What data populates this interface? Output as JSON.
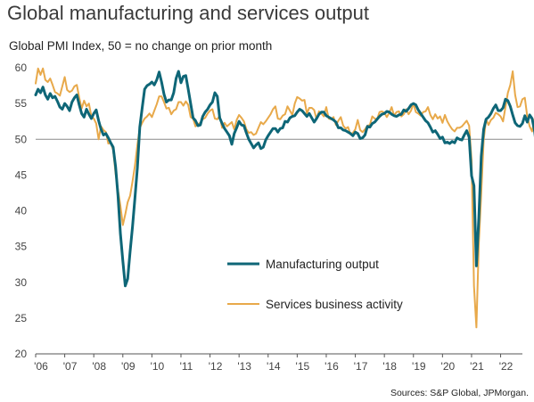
{
  "title": "Global manufacturing and services output",
  "subtitle": "Global PMI Index, 50 = no change on prior month",
  "source": "Sources: S&P Global, JPMorgan.",
  "chart_data": {
    "type": "line",
    "x_start": 2006.0,
    "x_step_months": 1,
    "xlim": [
      2006.0,
      2022.75
    ],
    "ylim": [
      20,
      60
    ],
    "yticks": [
      20,
      25,
      30,
      35,
      40,
      45,
      50,
      55,
      60
    ],
    "xtick_labels": [
      "'06",
      "'07",
      "'08",
      "'09",
      "'10",
      "'11",
      "'12",
      "'13",
      "'14",
      "'15",
      "'16",
      "'17",
      "'18",
      "'19",
      "'20",
      "'21",
      "'22"
    ],
    "reference_line": 50,
    "legend_position": "lower-center",
    "series": [
      {
        "name": "Manufacturing output",
        "color": "#0e6677",
        "values": [
          56.2,
          57.0,
          56.5,
          57.3,
          56.2,
          55.6,
          56.4,
          55.8,
          56.0,
          55.3,
          54.5,
          54.2,
          55.0,
          54.6,
          54.0,
          55.2,
          55.8,
          56.2,
          54.8,
          53.6,
          53.1,
          54.2,
          53.5,
          52.9,
          53.6,
          54.1,
          52.6,
          51.4,
          50.6,
          50.8,
          50.2,
          49.5,
          48.9,
          46.2,
          42.1,
          36.8,
          33.0,
          29.5,
          30.5,
          34.3,
          37.8,
          41.8,
          46.0,
          51.7,
          54.4,
          57.0,
          57.5,
          57.7,
          58.0,
          57.6,
          58.3,
          59.4,
          58.0,
          56.3,
          55.2,
          55.5,
          55.5,
          56.5,
          58.5,
          59.5,
          57.9,
          58.8,
          58.9,
          57.0,
          55.0,
          53.0,
          52.6,
          51.9,
          52.0,
          53.2,
          53.8,
          54.2,
          54.8,
          55.2,
          56.5,
          56.0,
          53.0,
          52.2,
          51.5,
          51.0,
          50.5,
          49.3,
          50.8,
          51.6,
          52.5,
          52.0,
          51.9,
          50.9,
          50.0,
          49.4,
          48.8,
          49.2,
          49.5,
          48.7,
          48.9,
          49.9,
          50.5,
          51.0,
          51.5,
          51.5,
          51.0,
          51.5,
          51.6,
          52.5,
          52.4,
          53.0,
          53.2,
          53.3,
          53.8,
          54.2,
          54.0,
          53.6,
          53.2,
          53.6,
          53.0,
          52.4,
          52.9,
          53.5,
          53.8,
          53.8,
          53.3,
          53.1,
          52.9,
          52.7,
          52.4,
          51.6,
          51.6,
          51.3,
          51.2,
          51.0,
          50.8,
          50.5,
          51.0,
          50.8,
          50.1,
          50.2,
          50.6,
          51.8,
          51.7,
          52.2,
          52.4,
          52.8,
          53.2,
          53.5,
          53.6,
          53.9,
          53.8,
          53.5,
          53.3,
          53.2,
          53.4,
          53.5,
          54.1,
          53.9,
          54.3,
          54.8,
          55.0,
          54.8,
          54.1,
          53.6,
          53.1,
          52.6,
          52.3,
          51.7,
          51.0,
          51.2,
          50.7,
          50.1,
          50.3,
          49.5,
          49.6,
          49.4,
          49.7,
          49.5,
          50.2,
          50.0,
          49.9,
          50.6,
          51.2,
          50.3,
          44.9,
          43.5,
          32.3,
          39.0,
          47.6,
          51.4,
          52.8,
          53.1,
          53.6,
          54.3,
          54.8,
          54.0,
          54.0,
          54.4,
          55.6,
          55.4,
          54.6,
          53.4,
          52.3,
          51.9,
          51.8,
          52.2,
          53.3,
          52.4,
          53.4,
          52.9,
          51.2,
          48.5,
          48.9,
          50.8,
          52.0,
          50.7,
          49.8
        ]
      },
      {
        "name": "Services business activity",
        "color": "#e8a94a",
        "values": [
          57.8,
          59.9,
          59.0,
          59.9,
          58.3,
          58.0,
          58.5,
          57.6,
          56.6,
          56.4,
          56.1,
          57.4,
          58.7,
          56.9,
          56.6,
          56.8,
          57.4,
          57.6,
          55.8,
          54.3,
          55.4,
          54.6,
          55.0,
          53.2,
          52.9,
          52.2,
          50.0,
          51.8,
          51.3,
          51.0,
          49.4,
          49.5,
          48.5,
          45.2,
          42.9,
          40.7,
          38.0,
          39.5,
          41.2,
          42.1,
          44.1,
          46.3,
          49.2,
          51.6,
          52.3,
          52.9,
          53.2,
          53.6,
          53.1,
          54.0,
          54.9,
          56.0,
          56.0,
          55.2,
          54.3,
          54.4,
          53.5,
          54.0,
          54.2,
          55.2,
          55.2,
          54.7,
          55.3,
          54.8,
          53.1,
          52.9,
          51.8,
          52.1,
          52.3,
          52.8,
          53.0,
          53.6,
          54.0,
          54.2,
          52.9,
          52.8,
          53.3,
          51.6,
          52.3,
          51.8,
          52.1,
          52.4,
          51.4,
          52.7,
          53.4,
          53.0,
          52.5,
          51.4,
          50.9,
          51.0,
          50.6,
          50.8,
          51.6,
          52.4,
          52.1,
          52.5,
          53.0,
          53.5,
          54.2,
          54.6,
          52.9,
          52.8,
          53.3,
          53.5,
          54.6,
          54.0,
          53.4,
          55.0,
          55.9,
          55.7,
          55.4,
          55.5,
          53.6,
          54.4,
          54.4,
          54.1,
          52.8,
          53.9,
          53.6,
          53.2,
          54.5,
          52.9,
          52.8,
          53.1,
          52.0,
          52.6,
          53.1,
          51.9,
          51.5,
          51.7,
          50.7,
          50.9,
          51.4,
          52.7,
          51.3,
          51.0,
          51.4,
          51.9,
          52.0,
          53.2,
          52.9,
          52.8,
          53.8,
          53.9,
          53.7,
          53.1,
          53.7,
          54.5,
          53.3,
          53.8,
          53.9,
          53.2,
          53.5,
          54.2,
          53.5,
          54.0,
          55.0,
          53.8,
          53.6,
          53.3,
          53.8,
          53.9,
          54.5,
          53.4,
          52.8,
          53.5,
          52.9,
          53.2,
          52.3,
          53.4,
          52.5,
          51.9,
          51.4,
          51.1,
          51.6,
          51.6,
          51.8,
          52.2,
          52.6,
          51.9,
          47.1,
          29.5,
          23.7,
          35.5,
          42.4,
          49.9,
          52.8,
          52.0,
          52.7,
          53.0,
          53.7,
          53.5,
          53.2,
          52.5,
          54.5,
          56.5,
          57.6,
          59.5,
          56.2,
          54.5,
          54.6,
          55.6,
          55.8,
          53.2,
          51.8,
          51.1,
          52.8,
          50.0,
          51.7,
          53.5,
          51.4,
          49.5,
          49.2
        ]
      }
    ]
  }
}
